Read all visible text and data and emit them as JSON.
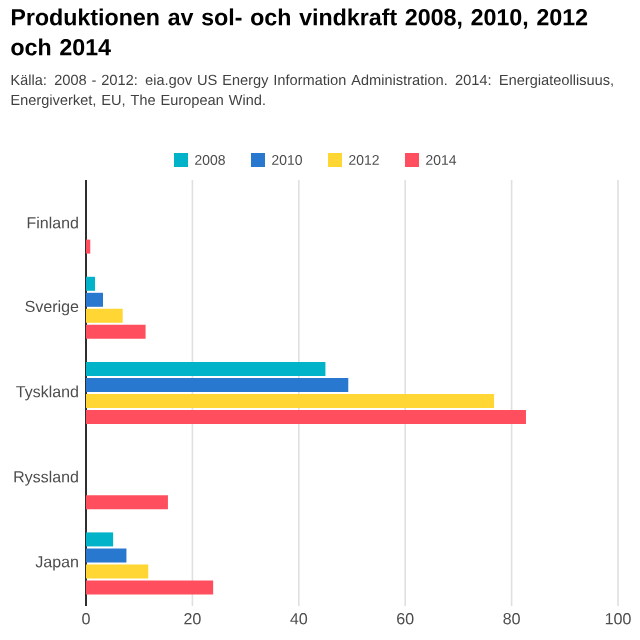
{
  "chart_data": {
    "type": "bar",
    "orientation": "horizontal",
    "title": "Produktionen av sol- och vindkraft 2008, 2010, 2012 och 2014",
    "subtitle": "Källa: 2008 - 2012: eia.gov US Energy Information Administration. 2014: Energiateollisuus, Energiverket, EU, The European Wind.",
    "categories": [
      "Finland",
      "Sverige",
      "Tyskland",
      "Ryssland",
      "Japan"
    ],
    "series": [
      {
        "name": "2008",
        "color": "#00b3c8",
        "values": [
          null,
          1.7,
          45,
          null,
          5.1
        ]
      },
      {
        "name": "2010",
        "color": "#2878d0",
        "values": [
          null,
          3.2,
          49.3,
          null,
          7.6
        ]
      },
      {
        "name": "2012",
        "color": "#ffd633",
        "values": [
          null,
          6.9,
          76.7,
          null,
          11.7
        ]
      },
      {
        "name": "2014",
        "color": "#ff4f5e",
        "values": [
          0.8,
          11.2,
          82.7,
          15.4,
          23.9
        ]
      }
    ],
    "xlim": [
      0,
      100
    ],
    "xticks": [
      0,
      20,
      40,
      60,
      80,
      100
    ],
    "grid": "x",
    "legend": "top"
  }
}
